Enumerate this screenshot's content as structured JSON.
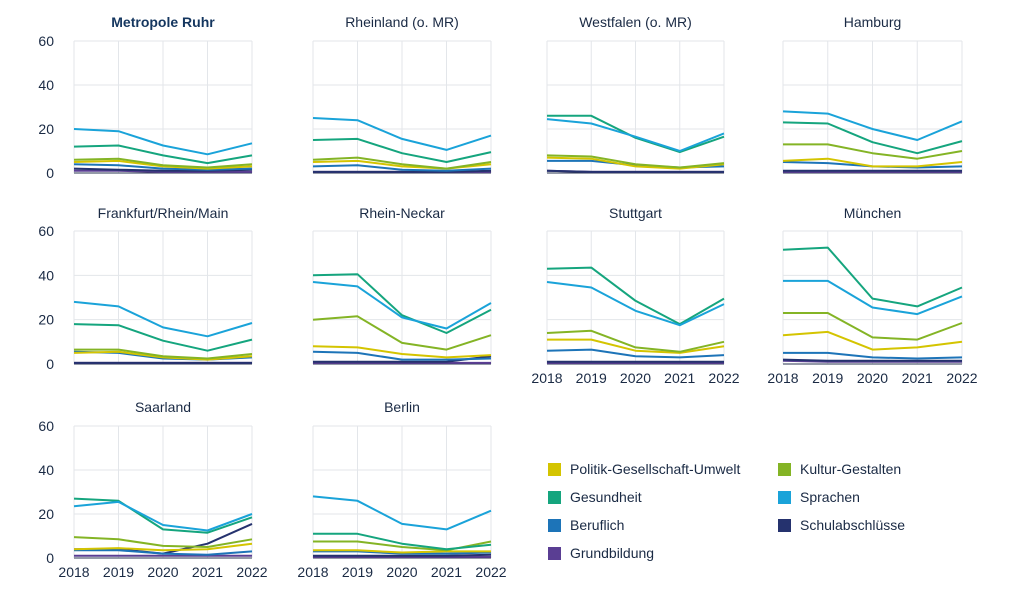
{
  "chart_data": {
    "type": "line",
    "x": [
      2018,
      2019,
      2020,
      2021,
      2022
    ],
    "ylim": [
      0,
      60
    ],
    "yticks": [
      0,
      20,
      40,
      60
    ],
    "grid": true,
    "legend_position": "bottom-right",
    "series_defs": [
      {
        "name": "Politik-Gesellschaft-Umwelt",
        "color": "#d4c400"
      },
      {
        "name": "Kultur-Gestalten",
        "color": "#84b425"
      },
      {
        "name": "Gesundheit",
        "color": "#15a57e"
      },
      {
        "name": "Sprachen",
        "color": "#1aa3d9"
      },
      {
        "name": "Beruflich",
        "color": "#1d74b8"
      },
      {
        "name": "Schulabschlüsse",
        "color": "#25326e"
      },
      {
        "name": "Grundbildung",
        "color": "#5a3e93"
      }
    ],
    "panels": [
      {
        "title": "Metropole Ruhr",
        "bold": true,
        "show_y": true,
        "show_x": false,
        "values": {
          "Politik-Gesellschaft-Umwelt": [
            5,
            5.5,
            3,
            2,
            3
          ],
          "Kultur-Gestalten": [
            6,
            6.5,
            3.5,
            2.5,
            4
          ],
          "Gesundheit": [
            12,
            12.5,
            8,
            4.5,
            8
          ],
          "Sprachen": [
            20,
            19,
            12.5,
            8.5,
            13.5
          ],
          "Beruflich": [
            4,
            3.5,
            2,
            1.5,
            2
          ],
          "Schulabschlüsse": [
            2,
            1.5,
            1,
            1,
            1.5
          ],
          "Grundbildung": [
            1,
            1,
            0.5,
            0.5,
            0.5
          ]
        }
      },
      {
        "title": "Rheinland (o. MR)",
        "bold": false,
        "show_y": false,
        "show_x": false,
        "values": {
          "Politik-Gesellschaft-Umwelt": [
            5,
            5.5,
            3,
            2,
            4
          ],
          "Kultur-Gestalten": [
            6,
            7,
            4,
            2,
            5
          ],
          "Gesundheit": [
            15,
            15.5,
            9,
            5,
            9.5
          ],
          "Sprachen": [
            25,
            24,
            15.5,
            10.5,
            17
          ],
          "Beruflich": [
            3,
            3.5,
            1.5,
            1,
            2
          ],
          "Schulabschlüsse": [
            0.5,
            0.5,
            0.5,
            0.5,
            1
          ],
          "Grundbildung": [
            0.5,
            0.5,
            0.5,
            0.5,
            0.5
          ]
        }
      },
      {
        "title": "Westfalen (o. MR)",
        "bold": false,
        "show_y": false,
        "show_x": false,
        "values": {
          "Politik-Gesellschaft-Umwelt": [
            7,
            6.5,
            3,
            2,
            4
          ],
          "Kultur-Gestalten": [
            8,
            7.5,
            4,
            2.5,
            4.5
          ],
          "Gesundheit": [
            26,
            26,
            16,
            9.5,
            16.5
          ],
          "Sprachen": [
            24.5,
            22.5,
            16.5,
            10,
            18
          ],
          "Beruflich": [
            5.5,
            5.5,
            3.5,
            2.5,
            3
          ],
          "Schulabschlüsse": [
            1,
            0.5,
            0.5,
            0.5,
            0.5
          ],
          "Grundbildung": [
            1,
            0.5,
            0.5,
            0.5,
            0.5
          ]
        }
      },
      {
        "title": "Hamburg",
        "bold": false,
        "show_y": false,
        "show_x": false,
        "values": {
          "Politik-Gesellschaft-Umwelt": [
            5.5,
            6.5,
            3,
            3,
            5
          ],
          "Kultur-Gestalten": [
            13,
            13,
            9,
            6.5,
            10
          ],
          "Gesundheit": [
            23,
            22.5,
            14,
            9,
            14.5
          ],
          "Sprachen": [
            28,
            27,
            20,
            15,
            23.5
          ],
          "Beruflich": [
            5,
            4.5,
            3,
            2.5,
            3
          ],
          "Schulabschlüsse": [
            1,
            1,
            1,
            1,
            1
          ],
          "Grundbildung": [
            0.5,
            0.5,
            0.5,
            0.5,
            0.5
          ]
        }
      },
      {
        "title": "Frankfurt/Rhein/Main",
        "bold": false,
        "show_y": true,
        "show_x": false,
        "values": {
          "Politik-Gesellschaft-Umwelt": [
            5,
            5.5,
            3,
            2,
            3.5
          ],
          "Kultur-Gestalten": [
            6.5,
            6.5,
            3.5,
            2.5,
            4.5
          ],
          "Gesundheit": [
            18,
            17.5,
            10.5,
            6,
            11
          ],
          "Sprachen": [
            28,
            26,
            16.5,
            12.5,
            18.5
          ],
          "Beruflich": [
            5.5,
            5,
            2.5,
            2,
            3
          ],
          "Schulabschlüsse": [
            0.5,
            0.5,
            0.5,
            0.5,
            0.5
          ],
          "Grundbildung": [
            0.5,
            0.5,
            0.5,
            0.5,
            0.5
          ]
        }
      },
      {
        "title": "Rhein-Neckar",
        "bold": false,
        "show_y": false,
        "show_x": false,
        "values": {
          "Politik-Gesellschaft-Umwelt": [
            8,
            7.5,
            4.5,
            3,
            4
          ],
          "Kultur-Gestalten": [
            20,
            21.5,
            9.5,
            6.5,
            13
          ],
          "Gesundheit": [
            40,
            40.5,
            22,
            14,
            24.5
          ],
          "Sprachen": [
            37,
            35,
            21,
            16,
            27.5
          ],
          "Beruflich": [
            5.5,
            5,
            2,
            2,
            2.5
          ],
          "Schulabschlüsse": [
            1,
            1,
            1,
            1,
            3.5
          ],
          "Grundbildung": [
            0.5,
            0.5,
            0.5,
            0.5,
            0.5
          ]
        }
      },
      {
        "title": "Stuttgart",
        "bold": false,
        "show_y": false,
        "show_x": true,
        "values": {
          "Politik-Gesellschaft-Umwelt": [
            11,
            11,
            6,
            5,
            8
          ],
          "Kultur-Gestalten": [
            14,
            15,
            7.5,
            5.5,
            10
          ],
          "Gesundheit": [
            43,
            43.5,
            28.5,
            18,
            29.5
          ],
          "Sprachen": [
            37,
            34.5,
            24,
            17.5,
            27
          ],
          "Beruflich": [
            6,
            6.5,
            3.5,
            3,
            4
          ],
          "Schulabschlüsse": [
            1,
            1,
            1,
            1,
            1
          ],
          "Grundbildung": [
            0.5,
            0.5,
            0.5,
            0.5,
            0.5
          ]
        }
      },
      {
        "title": "München",
        "bold": false,
        "show_y": false,
        "show_x": true,
        "values": {
          "Politik-Gesellschaft-Umwelt": [
            13,
            14.5,
            6.5,
            7.5,
            10
          ],
          "Kultur-Gestalten": [
            23,
            23,
            12,
            11,
            18.5
          ],
          "Gesundheit": [
            51.5,
            52.5,
            29.5,
            26,
            34.5
          ],
          "Sprachen": [
            37.5,
            37.5,
            25.5,
            22.5,
            30.5
          ],
          "Beruflich": [
            5,
            5,
            3,
            2.5,
            3
          ],
          "Schulabschlüsse": [
            2,
            1.5,
            1.5,
            1.5,
            1.5
          ],
          "Grundbildung": [
            1.5,
            1,
            1,
            1,
            1
          ]
        }
      },
      {
        "title": "Saarland",
        "bold": false,
        "show_y": true,
        "show_x": true,
        "values": {
          "Politik-Gesellschaft-Umwelt": [
            4,
            4.5,
            3.5,
            4,
            6.5
          ],
          "Kultur-Gestalten": [
            9.5,
            8.5,
            5.5,
            5,
            8.5
          ],
          "Gesundheit": [
            27,
            26,
            13,
            11.5,
            18.5
          ],
          "Sprachen": [
            23.5,
            25.5,
            15,
            12.5,
            20
          ],
          "Beruflich": [
            3.5,
            3.5,
            2,
            1.5,
            3
          ],
          "Schulabschlüsse": [
            4,
            4,
            2,
            6.5,
            15.5
          ],
          "Grundbildung": [
            1,
            1,
            1,
            1,
            1
          ]
        }
      },
      {
        "title": "Berlin",
        "bold": false,
        "show_y": false,
        "show_x": true,
        "values": {
          "Politik-Gesellschaft-Umwelt": [
            3.5,
            3.5,
            2.5,
            3,
            3
          ],
          "Kultur-Gestalten": [
            7.5,
            7.5,
            5,
            3.5,
            7.5
          ],
          "Gesundheit": [
            11,
            11,
            6.5,
            4,
            6
          ],
          "Sprachen": [
            28,
            26,
            15.5,
            13,
            21.5
          ],
          "Beruflich": [
            3,
            3,
            2,
            2,
            2.5
          ],
          "Schulabschlüsse": [
            1,
            1,
            1,
            1,
            1.5
          ],
          "Grundbildung": [
            0.5,
            0.5,
            0.5,
            0.5,
            0.5
          ]
        }
      }
    ],
    "legend_items": [
      {
        "name": "Politik-Gesellschaft-Umwelt",
        "color": "#d4c400"
      },
      {
        "name": "Kultur-Gestalten",
        "color": "#84b425"
      },
      {
        "name": "Gesundheit",
        "color": "#15a57e"
      },
      {
        "name": "Sprachen",
        "color": "#1aa3d9"
      },
      {
        "name": "Beruflich",
        "color": "#1d74b8"
      },
      {
        "name": "Schulabschlüsse",
        "color": "#25326e"
      },
      {
        "name": "Grundbildung",
        "color": "#5a3e93"
      }
    ]
  }
}
